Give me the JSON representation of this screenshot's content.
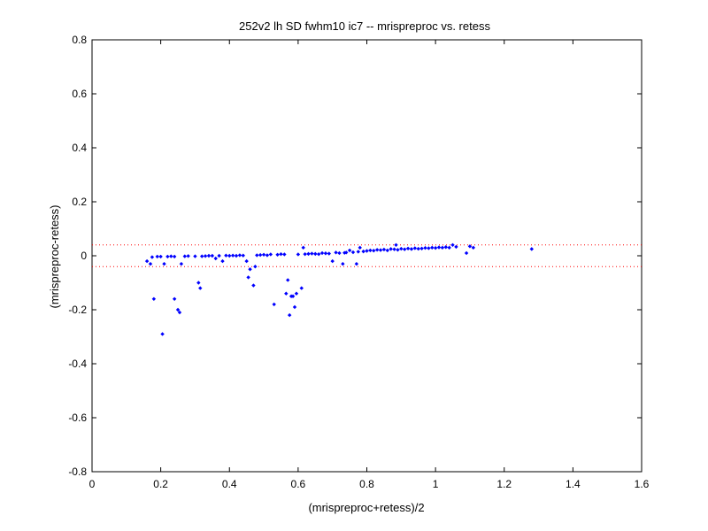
{
  "chart_data": {
    "type": "scatter",
    "title": "252v2 lh SD fwhm10 ic7 -- mrispreproc vs. retess",
    "xlabel": "(mrispreproc+retess)/2",
    "ylabel": "(mrispreproc-retess)",
    "xlim": [
      0,
      1.6
    ],
    "ylim": [
      -0.8,
      0.8
    ],
    "xticks": [
      0,
      0.2,
      0.4,
      0.6,
      0.8,
      1,
      1.2,
      1.4,
      1.6
    ],
    "xtick_labels": [
      "0",
      "0.2",
      "0.4",
      "0.6",
      "0.8",
      "1",
      "1.2",
      "1.4",
      "1.6"
    ],
    "yticks": [
      -0.8,
      -0.6,
      -0.4,
      -0.2,
      0,
      0.2,
      0.4,
      0.6,
      0.8
    ],
    "ytick_labels": [
      "-0.8",
      "-0.6",
      "-0.4",
      "-0.2",
      "0",
      "0.2",
      "0.4",
      "0.6",
      "0.8"
    ],
    "grid": false,
    "marker_color": "#0000ff",
    "reference_line_color": "#ff0000",
    "reference_lines_y": [
      0.04,
      -0.04
    ],
    "series": [
      {
        "points": [
          [
            0.16,
            -0.02
          ],
          [
            0.17,
            -0.03
          ],
          [
            0.175,
            -0.005
          ],
          [
            0.18,
            -0.16
          ],
          [
            0.19,
            -0.003
          ],
          [
            0.2,
            -0.003
          ],
          [
            0.205,
            -0.29
          ],
          [
            0.21,
            -0.03
          ],
          [
            0.22,
            -0.003
          ],
          [
            0.23,
            -0.002
          ],
          [
            0.24,
            -0.003
          ],
          [
            0.24,
            -0.16
          ],
          [
            0.25,
            -0.2
          ],
          [
            0.255,
            -0.21
          ],
          [
            0.26,
            -0.03
          ],
          [
            0.27,
            -0.002
          ],
          [
            0.28,
            -0.001
          ],
          [
            0.3,
            -0.002
          ],
          [
            0.31,
            -0.1
          ],
          [
            0.315,
            -0.12
          ],
          [
            0.32,
            -0.002
          ],
          [
            0.33,
            -0.001
          ],
          [
            0.34,
            0.0
          ],
          [
            0.35,
            0.0
          ],
          [
            0.36,
            -0.01
          ],
          [
            0.37,
            0.0
          ],
          [
            0.38,
            -0.02
          ],
          [
            0.39,
            0.001
          ],
          [
            0.4,
            0.0
          ],
          [
            0.41,
            0.001
          ],
          [
            0.42,
            0.0
          ],
          [
            0.43,
            0.002
          ],
          [
            0.44,
            0.001
          ],
          [
            0.45,
            -0.02
          ],
          [
            0.455,
            -0.08
          ],
          [
            0.46,
            -0.05
          ],
          [
            0.47,
            -0.11
          ],
          [
            0.475,
            -0.04
          ],
          [
            0.48,
            0.002
          ],
          [
            0.49,
            0.003
          ],
          [
            0.5,
            0.004
          ],
          [
            0.51,
            0.002
          ],
          [
            0.52,
            0.005
          ],
          [
            0.53,
            -0.18
          ],
          [
            0.54,
            0.004
          ],
          [
            0.55,
            0.006
          ],
          [
            0.56,
            0.005
          ],
          [
            0.565,
            -0.14
          ],
          [
            0.57,
            -0.09
          ],
          [
            0.575,
            -0.22
          ],
          [
            0.58,
            -0.15
          ],
          [
            0.585,
            -0.15
          ],
          [
            0.59,
            -0.19
          ],
          [
            0.595,
            -0.14
          ],
          [
            0.6,
            0.005
          ],
          [
            0.61,
            -0.12
          ],
          [
            0.615,
            0.03
          ],
          [
            0.62,
            0.006
          ],
          [
            0.63,
            0.007
          ],
          [
            0.64,
            0.008
          ],
          [
            0.65,
            0.007
          ],
          [
            0.66,
            0.006
          ],
          [
            0.67,
            0.01
          ],
          [
            0.68,
            0.009
          ],
          [
            0.69,
            0.008
          ],
          [
            0.7,
            -0.02
          ],
          [
            0.71,
            0.012
          ],
          [
            0.72,
            0.01
          ],
          [
            0.73,
            -0.03
          ],
          [
            0.735,
            0.011
          ],
          [
            0.74,
            0.012
          ],
          [
            0.75,
            0.02
          ],
          [
            0.76,
            0.013
          ],
          [
            0.77,
            -0.03
          ],
          [
            0.775,
            0.015
          ],
          [
            0.78,
            0.03
          ],
          [
            0.79,
            0.016
          ],
          [
            0.8,
            0.018
          ],
          [
            0.81,
            0.02
          ],
          [
            0.82,
            0.019
          ],
          [
            0.83,
            0.022
          ],
          [
            0.84,
            0.021
          ],
          [
            0.85,
            0.023
          ],
          [
            0.86,
            0.02
          ],
          [
            0.87,
            0.025
          ],
          [
            0.88,
            0.024
          ],
          [
            0.885,
            0.04
          ],
          [
            0.89,
            0.022
          ],
          [
            0.9,
            0.026
          ],
          [
            0.91,
            0.024
          ],
          [
            0.92,
            0.027
          ],
          [
            0.93,
            0.025
          ],
          [
            0.94,
            0.028
          ],
          [
            0.95,
            0.026
          ],
          [
            0.96,
            0.027
          ],
          [
            0.97,
            0.029
          ],
          [
            0.98,
            0.028
          ],
          [
            0.99,
            0.03
          ],
          [
            1.0,
            0.029
          ],
          [
            1.01,
            0.031
          ],
          [
            1.02,
            0.03
          ],
          [
            1.03,
            0.032
          ],
          [
            1.04,
            0.03
          ],
          [
            1.05,
            0.04
          ],
          [
            1.06,
            0.033
          ],
          [
            1.09,
            0.01
          ],
          [
            1.1,
            0.035
          ],
          [
            1.11,
            0.03
          ],
          [
            1.28,
            0.025
          ]
        ]
      }
    ]
  }
}
